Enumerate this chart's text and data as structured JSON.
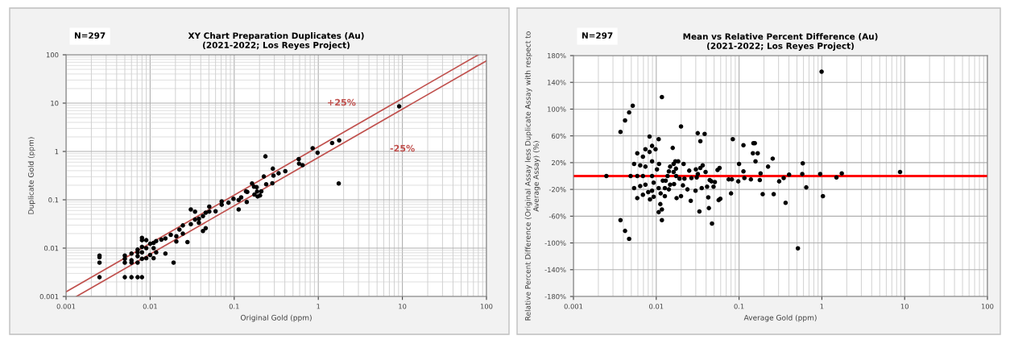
{
  "chart_data": [
    {
      "type": "scatter",
      "title": "XY Chart Preparation Duplicates (Au)\n(2021-2022; Los Reyes Project)",
      "xlabel": "Original Gold (ppm)",
      "ylabel": "Duplicate Gold (ppm)",
      "log": "xy",
      "grid": true,
      "xlim": [
        0.001,
        100
      ],
      "ylim": [
        0.001,
        100
      ],
      "xticks": [
        0.001,
        0.01,
        0.1,
        1,
        10,
        100
      ],
      "yticks": [
        0.001,
        0.01,
        0.1,
        1,
        10,
        100
      ],
      "annotations": [
        "N=297",
        "+25%",
        "-25%"
      ],
      "series": [
        {
          "marker": "circle",
          "color": "#000000",
          "x": [
            0.0025,
            0.0025,
            0.0025,
            0.0025,
            0.005,
            0.005,
            0.005,
            0.005,
            0.006,
            0.006,
            0.006,
            0.006,
            0.0071,
            0.0071,
            0.0071,
            0.0071,
            0.0071,
            0.008,
            0.008,
            0.008,
            0.008,
            0.008,
            0.008,
            0.009,
            0.009,
            0.009,
            0.01,
            0.01,
            0.011,
            0.011,
            0.011,
            0.0118,
            0.0118,
            0.0136,
            0.0152,
            0.0152,
            0.0176,
            0.019,
            0.0205,
            0.0205,
            0.0223,
            0.0245,
            0.0245,
            0.0278,
            0.0305,
            0.0305,
            0.0342,
            0.0342,
            0.038,
            0.038,
            0.0425,
            0.0425,
            0.0458,
            0.0458,
            0.0505,
            0.0505,
            0.06,
            0.071,
            0.071,
            0.0855,
            0.098,
            0.113,
            0.113,
            0.121,
            0.138,
            0.141,
            0.143,
            0.163,
            0.172,
            0.174,
            0.185,
            0.187,
            0.19,
            0.203,
            0.21,
            0.225,
            0.235,
            0.24,
            0.284,
            0.288,
            0.293,
            0.337,
            0.405,
            0.585,
            0.59,
            0.65,
            0.857,
            0.98,
            1.46,
            1.77,
            1.75,
            9.16
          ],
          "values": [
            0.007,
            0.0065,
            0.005,
            0.0025,
            0.007,
            0.006,
            0.005,
            0.0025,
            0.0077,
            0.0056,
            0.005,
            0.0025,
            0.0093,
            0.0082,
            0.0068,
            0.005,
            0.0025,
            0.0163,
            0.0146,
            0.0106,
            0.0082,
            0.006,
            0.0025,
            0.0146,
            0.01,
            0.0062,
            0.0123,
            0.0072,
            0.0128,
            0.01,
            0.0062,
            0.014,
            0.0082,
            0.015,
            0.0158,
            0.0077,
            0.0188,
            0.005,
            0.0176,
            0.0137,
            0.0242,
            0.0294,
            0.02,
            0.0133,
            0.0313,
            0.063,
            0.0568,
            0.0389,
            0.0407,
            0.0334,
            0.046,
            0.0226,
            0.054,
            0.0258,
            0.072,
            0.057,
            0.058,
            0.0925,
            0.079,
            0.087,
            0.105,
            0.099,
            0.063,
            0.112,
            0.149,
            0.09,
            0.145,
            0.218,
            0.187,
            0.128,
            0.182,
            0.148,
            0.117,
            0.123,
            0.15,
            0.303,
            0.79,
            0.21,
            0.22,
            0.44,
            0.316,
            0.353,
            0.39,
            0.695,
            0.56,
            0.52,
            1.17,
            0.94,
            1.5,
            1.7,
            0.218,
            8.6
          ]
        },
        {
          "type": "line",
          "color": "#c0504d",
          "x": [
            0.001,
            80
          ],
          "values": [
            0.00125,
            100
          ]
        },
        {
          "type": "line",
          "color": "#c0504d",
          "x": [
            0.00133,
            100
          ],
          "values": [
            0.001,
            75
          ]
        }
      ]
    },
    {
      "type": "scatter",
      "title": "Mean vs Relative Percent Difference (Au)\n(2021-2022; Los Reyes Project)",
      "xlabel": "Average Gold (ppm)",
      "ylabel": "Relative Percent Difference (Original Assay less Duplicate Assay with respect to\nAverage Assay) (%)",
      "log": "x",
      "grid": true,
      "xlim": [
        0.001,
        100
      ],
      "ylim": [
        -180,
        180
      ],
      "xticks": [
        0.001,
        0.01,
        0.1,
        1,
        10,
        100
      ],
      "yticks": [
        {
          "value": -180,
          "label": "-180%"
        },
        {
          "value": -140,
          "label": "-140%"
        },
        {
          "value": -100,
          "label": "-100%"
        },
        {
          "value": -60,
          "label": "-60%"
        },
        {
          "value": -20,
          "label": "-20%"
        },
        {
          "value": 20,
          "label": "20%"
        },
        {
          "value": 60,
          "label": "60%"
        },
        {
          "value": 100,
          "label": "100%"
        },
        {
          "value": 140,
          "label": "140%"
        },
        {
          "value": 180,
          "label": "180%"
        }
      ],
      "annotations": [
        "N=297"
      ],
      "ref_lines": [
        {
          "axis": "y",
          "value": 0,
          "color": "#ff0000"
        }
      ],
      "series": [
        {
          "marker": "circle",
          "color": "#000000",
          "x": [
            0.0025,
            0.0037,
            0.0042,
            0.0047,
            0.0052,
            0.0037,
            0.0042,
            0.0047,
            0.0049,
            0.0054,
            0.0054,
            0.0059,
            0.0059,
            0.0059,
            0.0064,
            0.0064,
            0.0069,
            0.0069,
            0.0069,
            0.0074,
            0.0074,
            0.0074,
            0.008,
            0.0083,
            0.0083,
            0.0084,
            0.0089,
            0.0089,
            0.0089,
            0.0089,
            0.0093,
            0.0093,
            0.0098,
            0.0102,
            0.0107,
            0.0107,
            0.0108,
            0.0112,
            0.0113,
            0.0107,
            0.0117,
            0.0117,
            0.0117,
            0.012,
            0.0127,
            0.0127,
            0.013,
            0.0137,
            0.0142,
            0.0142,
            0.0147,
            0.0147,
            0.0158,
            0.0162,
            0.0162,
            0.0164,
            0.017,
            0.0173,
            0.0174,
            0.0176,
            0.0184,
            0.0191,
            0.0199,
            0.0199,
            0.021,
            0.0214,
            0.0219,
            0.0238,
            0.025,
            0.0261,
            0.0266,
            0.0298,
            0.0301,
            0.0308,
            0.0317,
            0.0318,
            0.0332,
            0.0341,
            0.0341,
            0.0354,
            0.0364,
            0.0384,
            0.0394,
            0.0411,
            0.0425,
            0.0432,
            0.0442,
            0.0464,
            0.0471,
            0.0492,
            0.051,
            0.055,
            0.0567,
            0.0581,
            0.0594,
            0.075,
            0.08,
            0.0819,
            0.084,
            0.0978,
            0.1,
            0.113,
            0.113,
            0.116,
            0.139,
            0.147,
            0.149,
            0.155,
            0.158,
            0.168,
            0.178,
            0.182,
            0.193,
            0.224,
            0.255,
            0.262,
            0.305,
            0.346,
            0.365,
            0.402,
            0.514,
            0.58,
            0.588,
            0.648,
            0.956,
            0.993,
            1.03,
            1.5,
            1.74,
            8.8
          ],
          "values": [
            0,
            66,
            83,
            95,
            105,
            -66,
            -82,
            -94,
            0,
            18,
            -18,
            34,
            0,
            -33,
            16,
            -15,
            29,
            0,
            -28,
            40,
            14,
            -13,
            -24,
            59,
            36,
            -35,
            45,
            22,
            0,
            -22,
            -10,
            -31,
            40,
            10,
            55,
            -18,
            18,
            -42,
            -26,
            -54,
            118,
            -66,
            -50,
            -7,
            -18,
            -30,
            -7,
            0,
            7,
            -20,
            14,
            -13,
            42,
            18,
            6,
            -12,
            22,
            11,
            0,
            -33,
            22,
            -4,
            74,
            -30,
            -14,
            18,
            -4,
            -20,
            8,
            -37,
            -3,
            -22,
            10,
            -2,
            64,
            3,
            -53,
            12,
            52,
            -18,
            16,
            63,
            6,
            -16,
            -32,
            -48,
            -6,
            -8,
            -71,
            -16,
            -9,
            9,
            -36,
            12,
            -34,
            -5,
            -26,
            -5,
            55,
            -8,
            18,
            7,
            46,
            -3,
            -5,
            34,
            49,
            49,
            22,
            34,
            -6,
            4,
            -27,
            14,
            26,
            -27,
            -8,
            -3,
            -40,
            2,
            -108,
            3,
            19,
            -17,
            3,
            156,
            -30,
            -2,
            4,
            6
          ]
        }
      ]
    }
  ]
}
